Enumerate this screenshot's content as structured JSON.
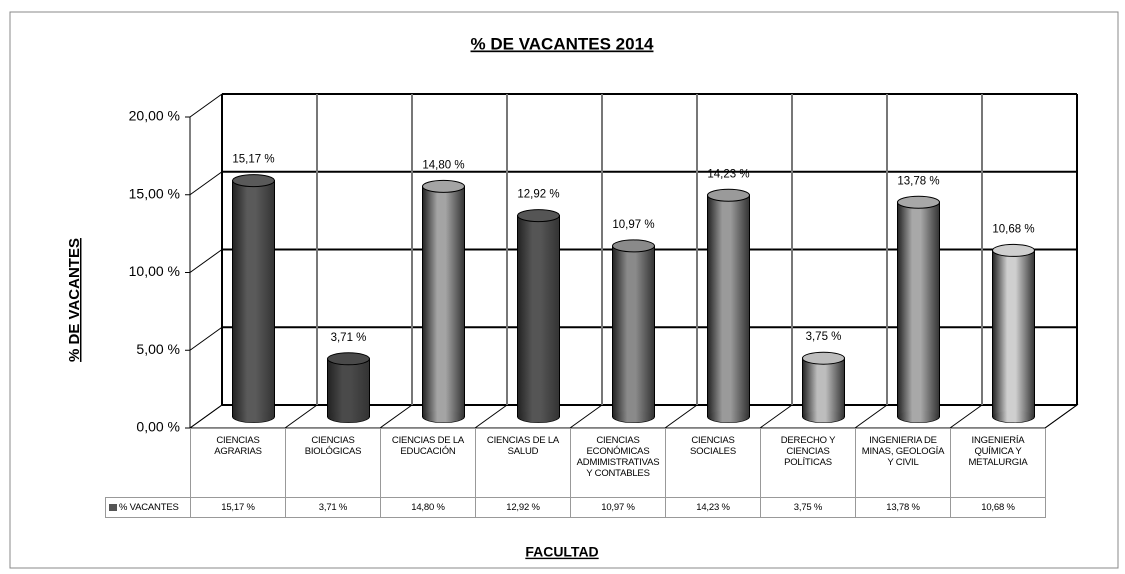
{
  "chart_data": {
    "type": "bar",
    "title": "% DE VACANTES 2014",
    "x_label": "FACULTAD",
    "y_label": "% DE VACANTES",
    "categories": [
      "CIENCIAS AGRARIAS",
      "CIENCIAS BIOLÓGICAS",
      "CIENCIAS DE LA EDUCACIÓN",
      "CIENCIAS DE LA SALUD",
      "CIENCIAS ECONÓMICAS ADMIMISTRATIVAS Y CONTABLES",
      "CIENCIAS SOCIALES",
      "DERECHO Y CIENCIAS POLÍTICAS",
      "INGENIERIA DE MINAS, GEOLOGÍA Y CIVIL",
      "INGENIERÍA QUÍMICA Y METALURGIA"
    ],
    "series": [
      {
        "name": "% VACANTES",
        "values": [
          15.17,
          3.71,
          14.8,
          12.92,
          10.97,
          14.23,
          3.75,
          13.78,
          10.68
        ],
        "value_labels": [
          "15,17 %",
          "3,71 %",
          "14,80 %",
          "12,92 %",
          "10,97 %",
          "14,23 %",
          "3,75 %",
          "13,78 %",
          "10,68 %"
        ],
        "colors": [
          "#5a5a5a",
          "#4a4a4a",
          "#a4a4a4",
          "#555555",
          "#8a8a8a",
          "#9a9a9a",
          "#bdbdbd",
          "#a8a8a8",
          "#cfcfcf"
        ]
      }
    ],
    "ylim": [
      0,
      20
    ],
    "yticks": [
      {
        "value": 0,
        "label": "0,00 %"
      },
      {
        "value": 5,
        "label": "5,00 %"
      },
      {
        "value": 10,
        "label": "10,00 %"
      },
      {
        "value": 15,
        "label": "15,00 %"
      },
      {
        "value": 20,
        "label": "20,00 %"
      }
    ],
    "grid": true
  }
}
